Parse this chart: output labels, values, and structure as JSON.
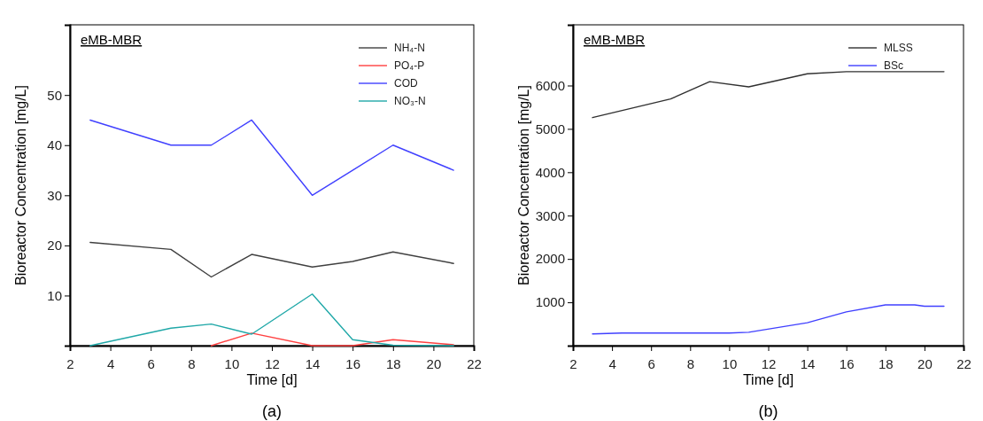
{
  "chart_data": [
    {
      "type": "line",
      "xlabel": "Time [d]",
      "ylabel": "Bioreactor Concentration [mg/L]",
      "annotations": [
        "eMB-MBR",
        "(a)"
      ],
      "xlim": [
        2,
        22
      ],
      "xticks": [
        2,
        4,
        6,
        8,
        10,
        12,
        14,
        16,
        18,
        20,
        22
      ],
      "ylim": [
        0,
        64
      ],
      "yticks": [
        10,
        20,
        30,
        40,
        50
      ],
      "x": [
        3,
        7,
        9,
        11,
        14,
        16,
        18,
        21
      ],
      "grid": false,
      "legend": "top right",
      "marker": "none",
      "line_style": "solid",
      "series": [
        {
          "name": "NH₄-N",
          "color": "#404040",
          "values": [
            20.6,
            19.2,
            13.7,
            18.2,
            15.7,
            16.8,
            18.7,
            16.4
          ]
        },
        {
          "name": "PO₄-P",
          "color": "#ff4040",
          "values": [
            null,
            null,
            0,
            2.5,
            0,
            0,
            1.2,
            0.2
          ]
        },
        {
          "name": "COD",
          "color": "#4040ff",
          "values": [
            45,
            40,
            40,
            45,
            30,
            35,
            40,
            35
          ]
        },
        {
          "name": "NO₃-N",
          "color": "#20a8a8",
          "values": [
            0,
            3.5,
            4.3,
            2.3,
            10.3,
            1.2,
            0.1,
            0
          ]
        }
      ]
    },
    {
      "type": "line",
      "xlabel": "Time [d]",
      "ylabel": "Bioreactor Concentration [mg/L]",
      "annotations": [
        "eMB-MBR",
        "(b)"
      ],
      "xlim": [
        2,
        22
      ],
      "xticks": [
        2,
        4,
        6,
        8,
        10,
        12,
        14,
        16,
        18,
        20,
        22
      ],
      "ylim": [
        0,
        7400
      ],
      "yticks": [
        1000,
        2000,
        3000,
        4000,
        5000,
        6000
      ],
      "grid": false,
      "legend": "top right",
      "marker": "none",
      "line_style": "solid",
      "series": [
        {
          "name": "MLSS",
          "color": "#303030",
          "x": [
            3,
            7,
            9,
            11,
            14,
            16,
            18,
            21
          ],
          "values": [
            5260,
            5690,
            6090,
            5970,
            6270,
            6320,
            6320,
            6320
          ]
        },
        {
          "name": "BSc",
          "color": "#4040ff",
          "x": [
            3,
            4.5,
            10,
            11,
            14,
            16,
            18,
            19.5,
            20,
            21
          ],
          "values": [
            270,
            290,
            290,
            310,
            530,
            780,
            940,
            940,
            910,
            910
          ]
        }
      ]
    }
  ]
}
